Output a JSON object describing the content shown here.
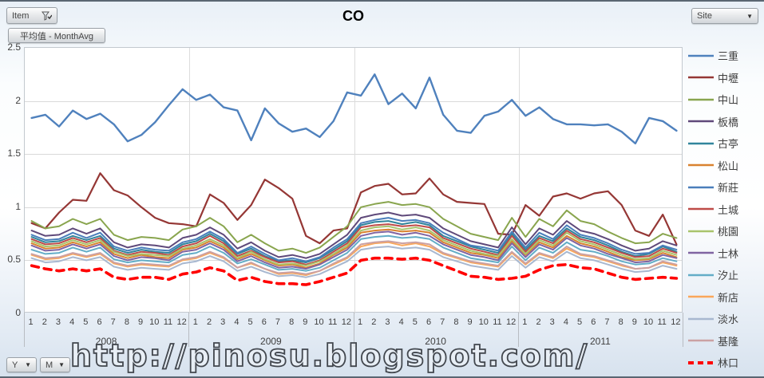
{
  "controls": {
    "item_button": "Item",
    "value_field_button": "平均值 - MonthAvg",
    "site_button": "Site",
    "year_button": "Y",
    "month_button": "M"
  },
  "watermark": "http://pinosu.blogspot.com/",
  "chart_data": {
    "type": "line",
    "title": "CO",
    "ylim": [
      0,
      2.5
    ],
    "y_ticks": [
      "2.5",
      "2",
      "1.5",
      "1",
      "0.5",
      "0"
    ],
    "grid": true,
    "legend_position": "right",
    "years": [
      "2008",
      "2009",
      "2010",
      "2011"
    ],
    "month_labels": [
      "1",
      "2",
      "3",
      "4",
      "5",
      "6",
      "7",
      "8",
      "9",
      "10",
      "11",
      "12"
    ],
    "series": [
      {
        "name": "三重",
        "color": "#4F81BD",
        "width": 2.4,
        "dash": false,
        "values": [
          1.84,
          1.87,
          1.76,
          1.91,
          1.83,
          1.88,
          1.78,
          1.62,
          1.68,
          1.8,
          1.96,
          2.11,
          2.01,
          2.06,
          1.94,
          1.91,
          1.63,
          1.93,
          1.79,
          1.71,
          1.74,
          1.66,
          1.81,
          2.08,
          2.05,
          2.25,
          1.97,
          2.07,
          1.93,
          2.22,
          1.87,
          1.72,
          1.7,
          1.86,
          1.9,
          2.01,
          1.86,
          1.94,
          1.83,
          1.78,
          1.78,
          1.77,
          1.78,
          1.71,
          1.6,
          1.84,
          1.81,
          1.72
        ]
      },
      {
        "name": "中壢",
        "color": "#953735",
        "width": 2.2,
        "dash": false,
        "values": [
          0.85,
          0.8,
          0.95,
          1.07,
          1.06,
          1.32,
          1.16,
          1.11,
          1.0,
          0.9,
          0.85,
          0.84,
          0.82,
          1.12,
          1.04,
          0.88,
          1.02,
          1.26,
          1.18,
          1.08,
          0.73,
          0.66,
          0.78,
          0.8,
          1.14,
          1.2,
          1.22,
          1.12,
          1.13,
          1.27,
          1.12,
          1.05,
          1.04,
          1.03,
          0.75,
          0.74,
          1.02,
          0.92,
          1.1,
          1.13,
          1.08,
          1.13,
          1.15,
          1.02,
          0.78,
          0.73,
          0.93,
          0.65
        ]
      },
      {
        "name": "中山",
        "color": "#89A54E",
        "width": 2,
        "dash": false,
        "values": [
          0.87,
          0.8,
          0.82,
          0.89,
          0.84,
          0.89,
          0.74,
          0.69,
          0.72,
          0.71,
          0.69,
          0.79,
          0.82,
          0.9,
          0.82,
          0.67,
          0.74,
          0.66,
          0.59,
          0.61,
          0.57,
          0.62,
          0.72,
          0.82,
          1.0,
          1.03,
          1.05,
          1.02,
          1.03,
          1.0,
          0.89,
          0.82,
          0.75,
          0.72,
          0.69,
          0.9,
          0.72,
          0.89,
          0.82,
          0.97,
          0.87,
          0.84,
          0.77,
          0.71,
          0.66,
          0.67,
          0.75,
          0.71
        ]
      },
      {
        "name": "板橋",
        "color": "#5F497A",
        "width": 2,
        "dash": false,
        "values": [
          0.78,
          0.73,
          0.74,
          0.8,
          0.75,
          0.8,
          0.67,
          0.62,
          0.65,
          0.64,
          0.62,
          0.71,
          0.74,
          0.81,
          0.74,
          0.61,
          0.67,
          0.59,
          0.53,
          0.55,
          0.52,
          0.56,
          0.65,
          0.74,
          0.9,
          0.93,
          0.95,
          0.92,
          0.93,
          0.9,
          0.8,
          0.74,
          0.68,
          0.65,
          0.62,
          0.81,
          0.65,
          0.8,
          0.74,
          0.87,
          0.78,
          0.75,
          0.7,
          0.64,
          0.59,
          0.61,
          0.68,
          0.64
        ]
      },
      {
        "name": "古亭",
        "color": "#31859C",
        "width": 2,
        "dash": false,
        "values": [
          0.72,
          0.67,
          0.68,
          0.73,
          0.69,
          0.73,
          0.61,
          0.57,
          0.6,
          0.58,
          0.57,
          0.65,
          0.68,
          0.75,
          0.68,
          0.56,
          0.61,
          0.54,
          0.49,
          0.5,
          0.48,
          0.52,
          0.6,
          0.68,
          0.83,
          0.86,
          0.87,
          0.84,
          0.86,
          0.83,
          0.73,
          0.68,
          0.63,
          0.6,
          0.57,
          0.75,
          0.6,
          0.73,
          0.68,
          0.8,
          0.72,
          0.69,
          0.64,
          0.58,
          0.54,
          0.56,
          0.63,
          0.58
        ]
      },
      {
        "name": "松山",
        "color": "#D9822F",
        "width": 2,
        "dash": false,
        "values": [
          0.66,
          0.61,
          0.62,
          0.67,
          0.63,
          0.67,
          0.56,
          0.52,
          0.55,
          0.53,
          0.52,
          0.6,
          0.62,
          0.68,
          0.62,
          0.51,
          0.56,
          0.5,
          0.45,
          0.46,
          0.43,
          0.47,
          0.55,
          0.62,
          0.76,
          0.78,
          0.79,
          0.77,
          0.78,
          0.76,
          0.67,
          0.62,
          0.57,
          0.55,
          0.52,
          0.68,
          0.55,
          0.67,
          0.62,
          0.73,
          0.66,
          0.63,
          0.58,
          0.53,
          0.5,
          0.51,
          0.57,
          0.53
        ]
      },
      {
        "name": "新莊",
        "color": "#4A7EBB",
        "width": 2,
        "dash": false,
        "values": [
          0.74,
          0.69,
          0.7,
          0.76,
          0.71,
          0.76,
          0.63,
          0.59,
          0.62,
          0.6,
          0.59,
          0.67,
          0.7,
          0.77,
          0.7,
          0.57,
          0.63,
          0.56,
          0.5,
          0.52,
          0.49,
          0.53,
          0.62,
          0.7,
          0.85,
          0.88,
          0.9,
          0.87,
          0.88,
          0.85,
          0.76,
          0.7,
          0.64,
          0.62,
          0.59,
          0.77,
          0.62,
          0.76,
          0.7,
          0.83,
          0.74,
          0.71,
          0.66,
          0.6,
          0.56,
          0.57,
          0.64,
          0.6
        ]
      },
      {
        "name": "土城",
        "color": "#BE4B48",
        "width": 2,
        "dash": false,
        "values": [
          0.7,
          0.65,
          0.66,
          0.71,
          0.67,
          0.71,
          0.59,
          0.55,
          0.58,
          0.57,
          0.55,
          0.63,
          0.66,
          0.73,
          0.66,
          0.54,
          0.59,
          0.53,
          0.48,
          0.49,
          0.46,
          0.5,
          0.58,
          0.66,
          0.81,
          0.83,
          0.84,
          0.82,
          0.83,
          0.81,
          0.71,
          0.66,
          0.61,
          0.58,
          0.55,
          0.73,
          0.58,
          0.71,
          0.66,
          0.78,
          0.7,
          0.67,
          0.62,
          0.57,
          0.53,
          0.54,
          0.61,
          0.57
        ]
      },
      {
        "name": "桃園",
        "color": "#A9C46C",
        "width": 2,
        "dash": false,
        "values": [
          0.68,
          0.63,
          0.64,
          0.69,
          0.65,
          0.69,
          0.58,
          0.54,
          0.56,
          0.55,
          0.54,
          0.61,
          0.64,
          0.7,
          0.64,
          0.52,
          0.58,
          0.51,
          0.46,
          0.47,
          0.45,
          0.49,
          0.56,
          0.64,
          0.78,
          0.81,
          0.82,
          0.79,
          0.81,
          0.78,
          0.69,
          0.64,
          0.59,
          0.56,
          0.54,
          0.7,
          0.56,
          0.69,
          0.64,
          0.76,
          0.68,
          0.65,
          0.6,
          0.55,
          0.51,
          0.52,
          0.59,
          0.55
        ]
      },
      {
        "name": "士林",
        "color": "#8064A2",
        "width": 2,
        "dash": false,
        "values": [
          0.64,
          0.59,
          0.6,
          0.65,
          0.61,
          0.65,
          0.54,
          0.5,
          0.53,
          0.52,
          0.5,
          0.58,
          0.6,
          0.66,
          0.6,
          0.49,
          0.54,
          0.48,
          0.43,
          0.44,
          0.42,
          0.46,
          0.53,
          0.6,
          0.73,
          0.76,
          0.77,
          0.74,
          0.76,
          0.73,
          0.65,
          0.6,
          0.55,
          0.53,
          0.5,
          0.66,
          0.53,
          0.65,
          0.6,
          0.71,
          0.64,
          0.61,
          0.56,
          0.52,
          0.48,
          0.49,
          0.55,
          0.52
        ]
      },
      {
        "name": "汐止",
        "color": "#63ADC7",
        "width": 2,
        "dash": false,
        "values": [
          0.6,
          0.56,
          0.57,
          0.62,
          0.58,
          0.62,
          0.51,
          0.48,
          0.5,
          0.49,
          0.48,
          0.55,
          0.57,
          0.63,
          0.57,
          0.47,
          0.51,
          0.46,
          0.41,
          0.42,
          0.4,
          0.43,
          0.5,
          0.57,
          0.7,
          0.72,
          0.73,
          0.71,
          0.72,
          0.7,
          0.62,
          0.57,
          0.52,
          0.5,
          0.48,
          0.63,
          0.5,
          0.62,
          0.57,
          0.67,
          0.6,
          0.58,
          0.54,
          0.49,
          0.46,
          0.47,
          0.52,
          0.49
        ]
      },
      {
        "name": "新店",
        "color": "#FAA75A",
        "width": 2,
        "dash": false,
        "values": [
          0.55,
          0.51,
          0.52,
          0.56,
          0.53,
          0.56,
          0.47,
          0.44,
          0.46,
          0.45,
          0.44,
          0.5,
          0.52,
          0.57,
          0.52,
          0.43,
          0.47,
          0.42,
          0.37,
          0.38,
          0.36,
          0.4,
          0.46,
          0.52,
          0.63,
          0.66,
          0.67,
          0.64,
          0.66,
          0.63,
          0.56,
          0.52,
          0.48,
          0.46,
          0.44,
          0.57,
          0.46,
          0.56,
          0.52,
          0.61,
          0.55,
          0.53,
          0.49,
          0.45,
          0.42,
          0.43,
          0.48,
          0.45
        ]
      },
      {
        "name": "淡水",
        "color": "#A8B8D0",
        "width": 2,
        "dash": false,
        "values": [
          0.52,
          0.48,
          0.49,
          0.53,
          0.5,
          0.53,
          0.44,
          0.41,
          0.43,
          0.42,
          0.41,
          0.47,
          0.49,
          0.54,
          0.49,
          0.4,
          0.44,
          0.39,
          0.35,
          0.36,
          0.34,
          0.37,
          0.43,
          0.49,
          0.6,
          0.62,
          0.63,
          0.61,
          0.62,
          0.6,
          0.53,
          0.49,
          0.45,
          0.43,
          0.41,
          0.54,
          0.43,
          0.53,
          0.49,
          0.58,
          0.52,
          0.5,
          0.46,
          0.42,
          0.39,
          0.4,
          0.45,
          0.42
        ]
      },
      {
        "name": "基隆",
        "color": "#CBA1A3",
        "width": 2,
        "dash": false,
        "values": [
          0.56,
          0.52,
          0.53,
          0.57,
          0.54,
          0.57,
          0.48,
          0.45,
          0.47,
          0.46,
          0.45,
          0.51,
          0.53,
          0.58,
          0.53,
          0.43,
          0.48,
          0.42,
          0.38,
          0.39,
          0.37,
          0.4,
          0.47,
          0.53,
          0.65,
          0.67,
          0.68,
          0.66,
          0.67,
          0.65,
          0.57,
          0.53,
          0.49,
          0.47,
          0.45,
          0.58,
          0.47,
          0.57,
          0.53,
          0.63,
          0.56,
          0.54,
          0.5,
          0.46,
          0.42,
          0.43,
          0.49,
          0.46
        ]
      },
      {
        "name": "林口",
        "color": "#FF0000",
        "width": 3.6,
        "dash": true,
        "values": [
          0.45,
          0.42,
          0.4,
          0.42,
          0.4,
          0.42,
          0.34,
          0.32,
          0.34,
          0.34,
          0.32,
          0.37,
          0.39,
          0.43,
          0.4,
          0.31,
          0.34,
          0.3,
          0.28,
          0.28,
          0.27,
          0.3,
          0.34,
          0.38,
          0.5,
          0.52,
          0.52,
          0.51,
          0.52,
          0.5,
          0.45,
          0.4,
          0.35,
          0.34,
          0.32,
          0.33,
          0.35,
          0.41,
          0.45,
          0.46,
          0.43,
          0.42,
          0.38,
          0.34,
          0.32,
          0.33,
          0.34,
          0.33
        ]
      }
    ]
  }
}
